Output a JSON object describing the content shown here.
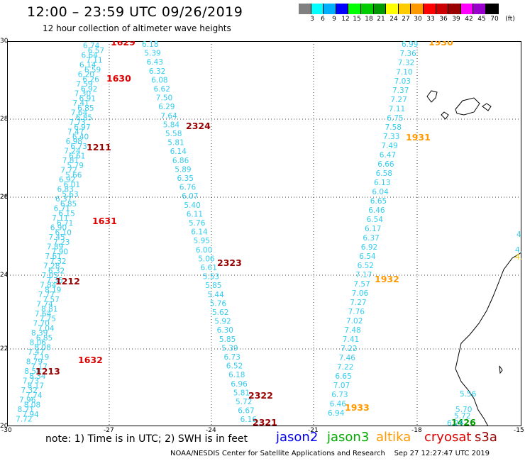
{
  "header": {
    "title": "12:00 – 23:59 UTC 09/26/2019",
    "subtitle": "12 hour collection of altimeter wave heights"
  },
  "colorbar": {
    "colors": [
      "#808080",
      "#00ffff",
      "#00b0ff",
      "#0000ff",
      "#00ff00",
      "#00cc00",
      "#009900",
      "#ffff00",
      "#ffcc00",
      "#ff9900",
      "#ff0000",
      "#cc0000",
      "#990000",
      "#ff00ff",
      "#9900cc",
      "#000000"
    ],
    "labels": [
      "3",
      "6",
      "9",
      "12",
      "15",
      "18",
      "21",
      "24",
      "27",
      "30",
      "33",
      "36",
      "39",
      "42",
      "45",
      "70",
      "(ft)"
    ]
  },
  "axes": {
    "x_labels": [
      "-30",
      "-27",
      "-24",
      "-21",
      "-18",
      "-15"
    ],
    "y_labels": [
      "30",
      "28",
      "28",
      "26",
      "24",
      "22",
      "20"
    ]
  },
  "tracks": [
    {
      "name": "track-a1",
      "color": "#33ccee",
      "values": [
        "6.74",
        "6.57",
        "6.64",
        "7.11",
        "6.14",
        "6.59",
        "6.20",
        "6.26",
        "7.59",
        "6.92",
        "7.30",
        "6.91",
        "7.41",
        "6.85",
        "7.64",
        "6.85",
        "7.73",
        "6.97",
        "7.47",
        "6.40",
        "6.98",
        "6.73",
        "7.24",
        "6.61",
        "7.81",
        "5.79",
        "7.72",
        "5.66",
        "6.92",
        "6.01",
        "6.83",
        "5.63",
        "6.37",
        "6.85",
        "6.71",
        "6.15",
        "7.11",
        "6.71",
        "6.90",
        "6.10",
        "7.45",
        "7.23",
        "7.89",
        "7.90",
        "7.61",
        "7.32",
        "7.28",
        "6.32",
        "7.05",
        "7.35",
        "7.84",
        "8.19",
        "7.77",
        "7.57",
        "7.74",
        "8.81",
        "7.64",
        "7.75",
        "7.70",
        "7.04",
        "8.39",
        "6.85",
        "8.06",
        "8.08",
        "7.47",
        "7.19",
        "8.79",
        "7.17",
        "8.58",
        "8.34",
        "7.73",
        "8.17",
        "7.32",
        "7.74",
        "7.96",
        "8.08",
        "8.71",
        "7.94",
        "7.72"
      ]
    },
    {
      "name": "track-b",
      "color": "#33ccee",
      "values": [
        "6.18",
        "5.39",
        "6.43",
        "6.32",
        "6.08",
        "6.62",
        "7.50",
        "6.29",
        "7.64",
        "5.84",
        "5.58",
        "5.81",
        "6.14",
        "6.86",
        "5.89",
        "6.35",
        "6.76",
        "6.07",
        "5.40",
        "6.11",
        "5.76",
        "6.14",
        "5.95",
        "6.00",
        "5.06",
        "6.61",
        "5.53",
        "5.85",
        "5.44",
        "5.76",
        "5.62",
        "5.92",
        "6.30",
        "5.85",
        "5.39",
        "6.73",
        "6.52",
        "6.18",
        "6.96",
        "5.81",
        "5.72",
        "6.67",
        "6.16"
      ]
    },
    {
      "name": "track-c",
      "color": "#33ccee",
      "values": [
        "6.99",
        "7.36",
        "7.32",
        "7.10",
        "7.03",
        "7.37",
        "7.27",
        "7.11",
        "6.75",
        "7.58",
        "7.33",
        "7.49",
        "6.47",
        "6.66",
        "6.58",
        "6.13",
        "6.04",
        "6.65",
        "6.46",
        "6.54",
        "6.17",
        "6.37",
        "6.92",
        "6.54",
        "6.52",
        "7.17",
        "7.57",
        "7.06",
        "7.27",
        "7.76",
        "7.02",
        "7.48",
        "7.41",
        "7.22",
        "7.46",
        "7.22",
        "6.65",
        "7.07",
        "6.73",
        "6.46",
        "6.94"
      ]
    }
  ],
  "pass_labels": [
    {
      "text": "1629",
      "color": "#dd0000"
    },
    {
      "text": "1630",
      "color": "#dd0000"
    },
    {
      "text": "1211",
      "color": "#990000"
    },
    {
      "text": "1631",
      "color": "#dd0000"
    },
    {
      "text": "1212",
      "color": "#990000"
    },
    {
      "text": "1632",
      "color": "#dd0000"
    },
    {
      "text": "1213",
      "color": "#990000"
    },
    {
      "text": "2324",
      "color": "#990000"
    },
    {
      "text": "2323",
      "color": "#990000"
    },
    {
      "text": "2322",
      "color": "#990000"
    },
    {
      "text": "2321",
      "color": "#990000"
    },
    {
      "text": "1930",
      "color": "#ff9900"
    },
    {
      "text": "1931",
      "color": "#ff9900"
    },
    {
      "text": "1932",
      "color": "#ff9900"
    },
    {
      "text": "1933",
      "color": "#ff9900"
    },
    {
      "text": "1426",
      "color": "#009900"
    }
  ],
  "extra_values": [
    {
      "text": "4.",
      "color": "#33ccee"
    },
    {
      "text": "4.",
      "color": "#33ccee"
    },
    {
      "text": "4.",
      "color": "#ffcc00"
    },
    {
      "text": "5.56",
      "color": "#33ccee"
    },
    {
      "text": "5.70",
      "color": "#33ccee"
    },
    {
      "text": "5.72",
      "color": "#33ccee"
    },
    {
      "text": "6.24",
      "color": "#33ccee"
    }
  ],
  "footer": {
    "note": "note: 1) Time is in UTC; 2) SWH is in feet",
    "satellites": [
      {
        "name": "jason2",
        "color": "#0000ee"
      },
      {
        "name": "jason3",
        "color": "#00aa00"
      },
      {
        "name": "altika",
        "color": "#ff9900"
      },
      {
        "name": "cryosat",
        "color": "#dd0000"
      },
      {
        "name": "s3a",
        "color": "#990000"
      }
    ],
    "credit": "NOAA/NESDIS Center for Satellite Applications and Research    Sep 27 12:27:47 UTC 2019"
  }
}
